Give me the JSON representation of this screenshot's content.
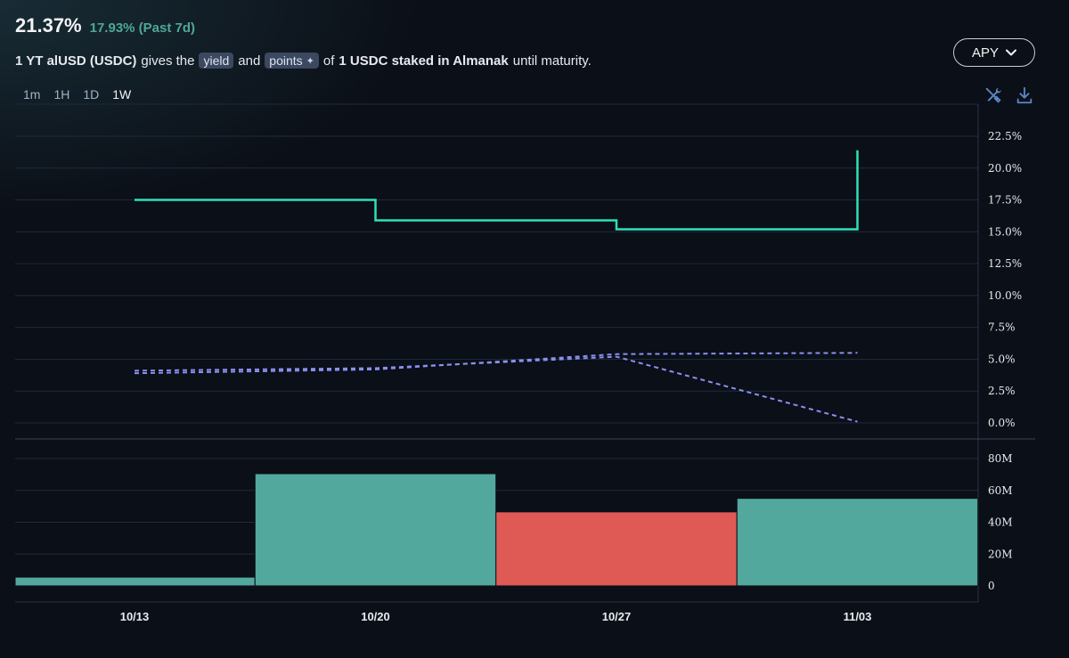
{
  "header": {
    "value": "21.37%",
    "change": "17.93% (Past 7d)"
  },
  "description": {
    "asset": "1 YT alUSD (USDC)",
    "gives": "gives the",
    "yield_pill": "yield",
    "and": "and",
    "points_pill": "points",
    "points_star": "✦",
    "of": "of",
    "underlying": "1 USDC staked in Almanak",
    "tail": "until maturity."
  },
  "ranges": [
    {
      "label": "1m",
      "active": false
    },
    {
      "label": "1H",
      "active": false
    },
    {
      "label": "1D",
      "active": false
    },
    {
      "label": "1W",
      "active": true
    }
  ],
  "apy_button": {
    "label": "APY",
    "icon": "chevron-down-icon"
  },
  "toolbar": {
    "settings_icon": "tools-icon",
    "download_icon": "download-icon"
  },
  "colors": {
    "apy_line": "#2ee0b8",
    "dashed_line": "#8b8ff0",
    "bar_up": "#52a89c",
    "bar_down": "#e05a55",
    "background": "#0b0f17",
    "grid": "#1e2a3c"
  },
  "chart_data": [
    {
      "type": "line",
      "x": [
        "10/13",
        "10/20",
        "10/27",
        "11/03"
      ],
      "y_ticks": [
        "0.0%",
        "2.5%",
        "5.0%",
        "7.5%",
        "10.0%",
        "12.5%",
        "15.0%",
        "17.5%",
        "20.0%",
        "22.5%"
      ],
      "ylim": [
        0,
        22.5
      ],
      "step_series": {
        "style": "step",
        "points": [
          [
            0,
            17.5
          ],
          [
            1,
            17.5
          ],
          [
            1,
            15.9
          ],
          [
            2,
            15.9
          ],
          [
            2,
            15.2
          ],
          [
            3,
            15.2
          ],
          [
            3,
            21.4
          ]
        ]
      },
      "dashed_series": [
        {
          "style": "dashed",
          "points": [
            [
              0,
              4.1
            ],
            [
              1,
              4.3
            ],
            [
              2,
              5.2
            ],
            [
              3,
              0.1
            ]
          ]
        },
        {
          "style": "dashed",
          "points": [
            [
              0,
              3.9
            ],
            [
              1,
              4.2
            ],
            [
              2,
              5.4
            ],
            [
              3,
              5.5
            ]
          ]
        }
      ]
    },
    {
      "type": "bar",
      "y_ticks": [
        "0",
        "20M",
        "40M",
        "60M",
        "80M"
      ],
      "ylim": [
        0,
        80
      ],
      "bars": [
        {
          "start": -0.5,
          "end": 0.5,
          "value": 5.5,
          "direction": "up"
        },
        {
          "start": 0.5,
          "end": 1.5,
          "value": 70.5,
          "direction": "up"
        },
        {
          "start": 1.5,
          "end": 2.5,
          "value": 46.5,
          "direction": "down"
        },
        {
          "start": 2.5,
          "end": 3.5,
          "value": 55,
          "direction": "up"
        }
      ]
    }
  ]
}
